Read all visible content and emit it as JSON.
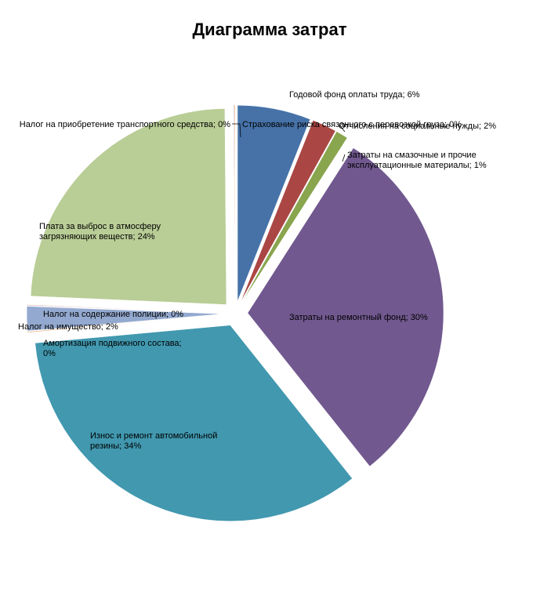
{
  "chart_data": {
    "type": "pie",
    "title": "Диаграмма затрат",
    "exploded": true,
    "slices": [
      {
        "label": "Годовой фонд оплаты труда; 6%",
        "category": "Годовой фонд оплаты труда",
        "value": 6,
        "color": "#4672A8"
      },
      {
        "label": "Отчисления на социальные нужды; 2%",
        "category": "Отчисления на социальные нужды",
        "value": 2,
        "color": "#AA4744"
      },
      {
        "label": "Затраты на смазочные и прочие эксплуатационные материалы; 1%",
        "category": "Затраты на смазочные и прочие эксплуатационные материалы",
        "value": 1,
        "color": "#89A54E"
      },
      {
        "label": "Затраты на ремонтный фонд; 30%",
        "category": "Затраты на ремонтный фонд",
        "value": 30,
        "color": "#71588F"
      },
      {
        "label": "Износ и ремонт автомобильной резины; 34%",
        "category": "Износ и ремонт автомобильной резины",
        "value": 34,
        "color": "#4198AF"
      },
      {
        "label": "Амортизация подвижного состава; 0%",
        "category": "Амортизация подвижного состава",
        "value": 0,
        "color": "#DB843D"
      },
      {
        "label": "Налог на имущество; 2%",
        "category": "Налог на имущество",
        "value": 2,
        "color": "#93A9CF"
      },
      {
        "label": "Налог на содержание полиции; 0%",
        "category": "Налог на содержание полиции",
        "value": 0,
        "color": "#D19392"
      },
      {
        "label": "Плата за выброс в атмосферу загрязняющих веществ; 24%",
        "category": "Плата за выброс в атмосферу загрязняющих веществ",
        "value": 24,
        "color": "#B9CD96"
      },
      {
        "label": "Налог на приобретение транспортного средства; 0%",
        "category": "Налог на приобретение транспортного средства",
        "value": 0,
        "color": "#A99BBD"
      },
      {
        "label": "Страхование риска связанного с перевозкой груза; 0%",
        "category": "Страхование риска связанного с перевозкой груза",
        "value": 0,
        "color": "#F79646"
      }
    ]
  }
}
